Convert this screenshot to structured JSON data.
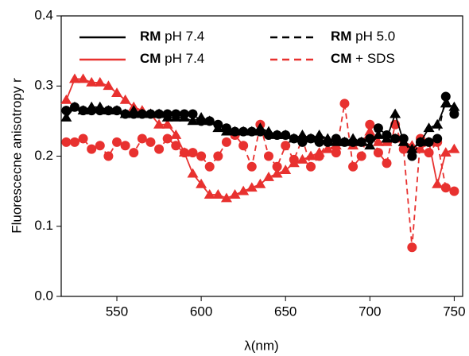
{
  "chart_data": {
    "type": "line",
    "x_label": "λ(nm)",
    "y_label": "Fluorescecne anisotropy r",
    "x": [
      520,
      525,
      530,
      535,
      540,
      545,
      550,
      555,
      560,
      565,
      570,
      575,
      580,
      585,
      590,
      595,
      600,
      605,
      610,
      615,
      620,
      625,
      630,
      635,
      640,
      645,
      650,
      655,
      660,
      665,
      670,
      675,
      680,
      685,
      690,
      695,
      700,
      705,
      710,
      715,
      720,
      725,
      730,
      735,
      740,
      745,
      750
    ],
    "xlim": [
      517,
      755
    ],
    "xticks": [
      550,
      600,
      650,
      700,
      750
    ],
    "ylim": [
      0,
      0.4
    ],
    "yticks": [
      {
        "value": 0,
        "label": "0.0"
      },
      0.1,
      0.2,
      0.3,
      0.4
    ],
    "series": [
      {
        "name": "RM pH 7.4",
        "color": "#000000",
        "dash": false,
        "marker": "triangle",
        "values": [
          0.255,
          0.27,
          0.265,
          0.27,
          0.27,
          0.265,
          0.265,
          0.26,
          0.265,
          0.26,
          0.26,
          0.26,
          0.255,
          0.255,
          0.255,
          0.25,
          0.255,
          0.25,
          0.24,
          0.235,
          0.235,
          0.235,
          0.235,
          0.24,
          0.235,
          0.23,
          0.23,
          0.225,
          0.23,
          0.225,
          0.23,
          0.225,
          0.22,
          0.22,
          0.225,
          0.22,
          0.215,
          0.23,
          0.225,
          0.26,
          0.22,
          0.21,
          0.22,
          0.24,
          0.245,
          0.275,
          0.27
        ]
      },
      {
        "name": "RM pH 5.0",
        "color": "#000000",
        "dash": true,
        "marker": "circle",
        "values": [
          0.265,
          0.27,
          0.265,
          0.265,
          0.265,
          0.265,
          0.265,
          0.26,
          0.26,
          0.26,
          0.26,
          0.26,
          0.26,
          0.26,
          0.26,
          0.26,
          0.25,
          0.25,
          0.245,
          0.24,
          0.235,
          0.235,
          0.235,
          0.235,
          0.23,
          0.23,
          0.23,
          0.225,
          0.22,
          0.225,
          0.22,
          0.22,
          0.225,
          0.22,
          0.22,
          0.22,
          0.225,
          0.24,
          0.23,
          0.225,
          0.225,
          0.2,
          0.22,
          0.22,
          0.225,
          0.285,
          0.26
        ]
      },
      {
        "name": "CM pH 7.4",
        "color": "#e8312f",
        "dash": false,
        "marker": "triangle",
        "values": [
          0.28,
          0.31,
          0.31,
          0.305,
          0.305,
          0.3,
          0.29,
          0.28,
          0.27,
          0.265,
          0.26,
          0.245,
          0.245,
          0.23,
          0.205,
          0.175,
          0.16,
          0.145,
          0.145,
          0.14,
          0.145,
          0.15,
          0.155,
          0.16,
          0.17,
          0.175,
          0.18,
          0.19,
          0.195,
          0.2,
          0.205,
          0.21,
          0.215,
          0.22,
          0.215,
          0.22,
          0.235,
          0.22,
          0.22,
          0.225,
          0.22,
          0.215,
          0.21,
          0.22,
          0.16,
          0.205,
          0.21
        ]
      },
      {
        "name": "CM + SDS",
        "color": "#e8312f",
        "dash": true,
        "marker": "circle",
        "values": [
          0.22,
          0.22,
          0.225,
          0.21,
          0.215,
          0.2,
          0.22,
          0.215,
          0.205,
          0.225,
          0.22,
          0.21,
          0.225,
          0.215,
          0.205,
          0.205,
          0.2,
          0.185,
          0.2,
          0.22,
          0.23,
          0.215,
          0.185,
          0.245,
          0.2,
          0.185,
          0.215,
          0.195,
          0.225,
          0.185,
          0.2,
          0.22,
          0.205,
          0.275,
          0.185,
          0.2,
          0.245,
          0.205,
          0.19,
          0.245,
          0.21,
          0.07,
          0.225,
          0.205,
          0.22,
          0.155,
          0.15
        ]
      }
    ]
  }
}
